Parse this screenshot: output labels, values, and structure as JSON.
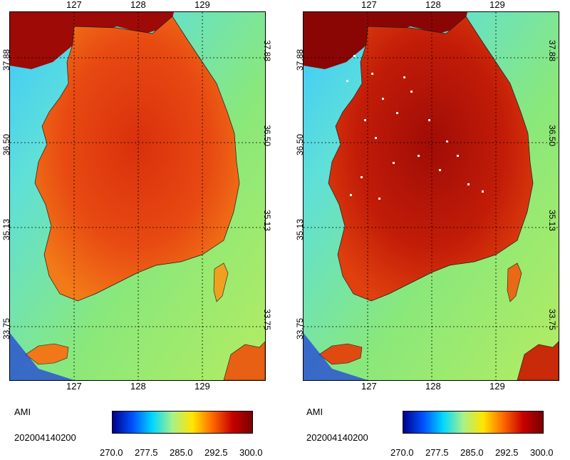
{
  "panels": [
    {
      "id": "left",
      "top_lon_labels": [
        "127",
        "128",
        "129"
      ],
      "bottom_lon_labels": [
        "127",
        "128",
        "129"
      ],
      "lat_labels": [
        "37.88",
        "36.50",
        "35.13",
        "33.75"
      ],
      "sensor": "AMI",
      "timestamp": "202004140200",
      "colorbar_labels": [
        "270.0",
        "277.5",
        "285.0",
        "292.5",
        "300.0"
      ],
      "land_color": "#e23a12",
      "sea_color": "#7fe07a"
    },
    {
      "id": "right",
      "top_lon_labels": [
        "127",
        "128",
        "129"
      ],
      "bottom_lon_labels": [
        "127",
        "128",
        "129"
      ],
      "lat_labels": [
        "37.88",
        "36.50",
        "35.13",
        "33.75"
      ],
      "sensor": "AMI",
      "timestamp": "202004140200",
      "colorbar_labels": [
        "270.0",
        "277.5",
        "285.0",
        "292.5",
        "300.0"
      ],
      "land_color": "#b51408",
      "sea_color": "#7fe07a"
    }
  ],
  "colorbar_colors": [
    "#00008b",
    "#0050ff",
    "#00d8ff",
    "#a8f08a",
    "#ffe600",
    "#ff6a00",
    "#c80000",
    "#7a0000"
  ]
}
